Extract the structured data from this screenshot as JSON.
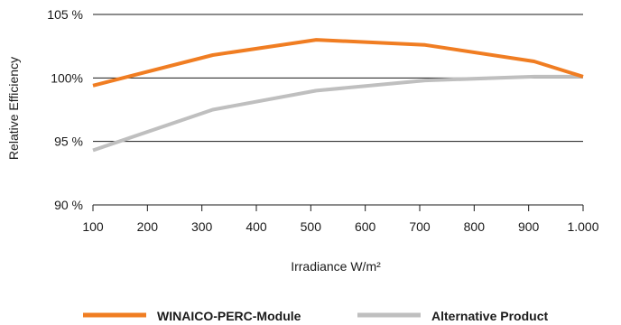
{
  "chart_data": {
    "type": "line",
    "x": [
      100,
      320,
      510,
      710,
      910,
      1000
    ],
    "x_ticks": [
      100,
      200,
      300,
      400,
      500,
      600,
      700,
      800,
      900,
      1000
    ],
    "x_tick_labels": [
      "100",
      "200",
      "300",
      "400",
      "500",
      "600",
      "700",
      "800",
      "900",
      "1.000"
    ],
    "y_ticks": [
      90,
      95,
      100,
      105
    ],
    "y_tick_labels": [
      "90 %",
      "95 %",
      "100%",
      "105 %"
    ],
    "xlim": [
      100,
      1000
    ],
    "ylim": [
      90,
      105
    ],
    "xlabel": "Irradiance W/m²",
    "ylabel": "Relative Efficiency",
    "grid": "horizontal",
    "legend_position": "bottom",
    "series": [
      {
        "name": "WINAICO-PERC-Module",
        "color": "#f07d22",
        "points": [
          [
            100,
            99.4
          ],
          [
            320,
            101.8
          ],
          [
            510,
            103.0
          ],
          [
            710,
            102.6
          ],
          [
            910,
            101.3
          ],
          [
            1000,
            100.1
          ]
        ]
      },
      {
        "name": "Alternative Product",
        "color": "#bfbfbf",
        "points": [
          [
            100,
            94.3
          ],
          [
            320,
            97.5
          ],
          [
            510,
            99.0
          ],
          [
            710,
            99.8
          ],
          [
            910,
            100.1
          ],
          [
            1000,
            100.1
          ]
        ]
      }
    ]
  }
}
